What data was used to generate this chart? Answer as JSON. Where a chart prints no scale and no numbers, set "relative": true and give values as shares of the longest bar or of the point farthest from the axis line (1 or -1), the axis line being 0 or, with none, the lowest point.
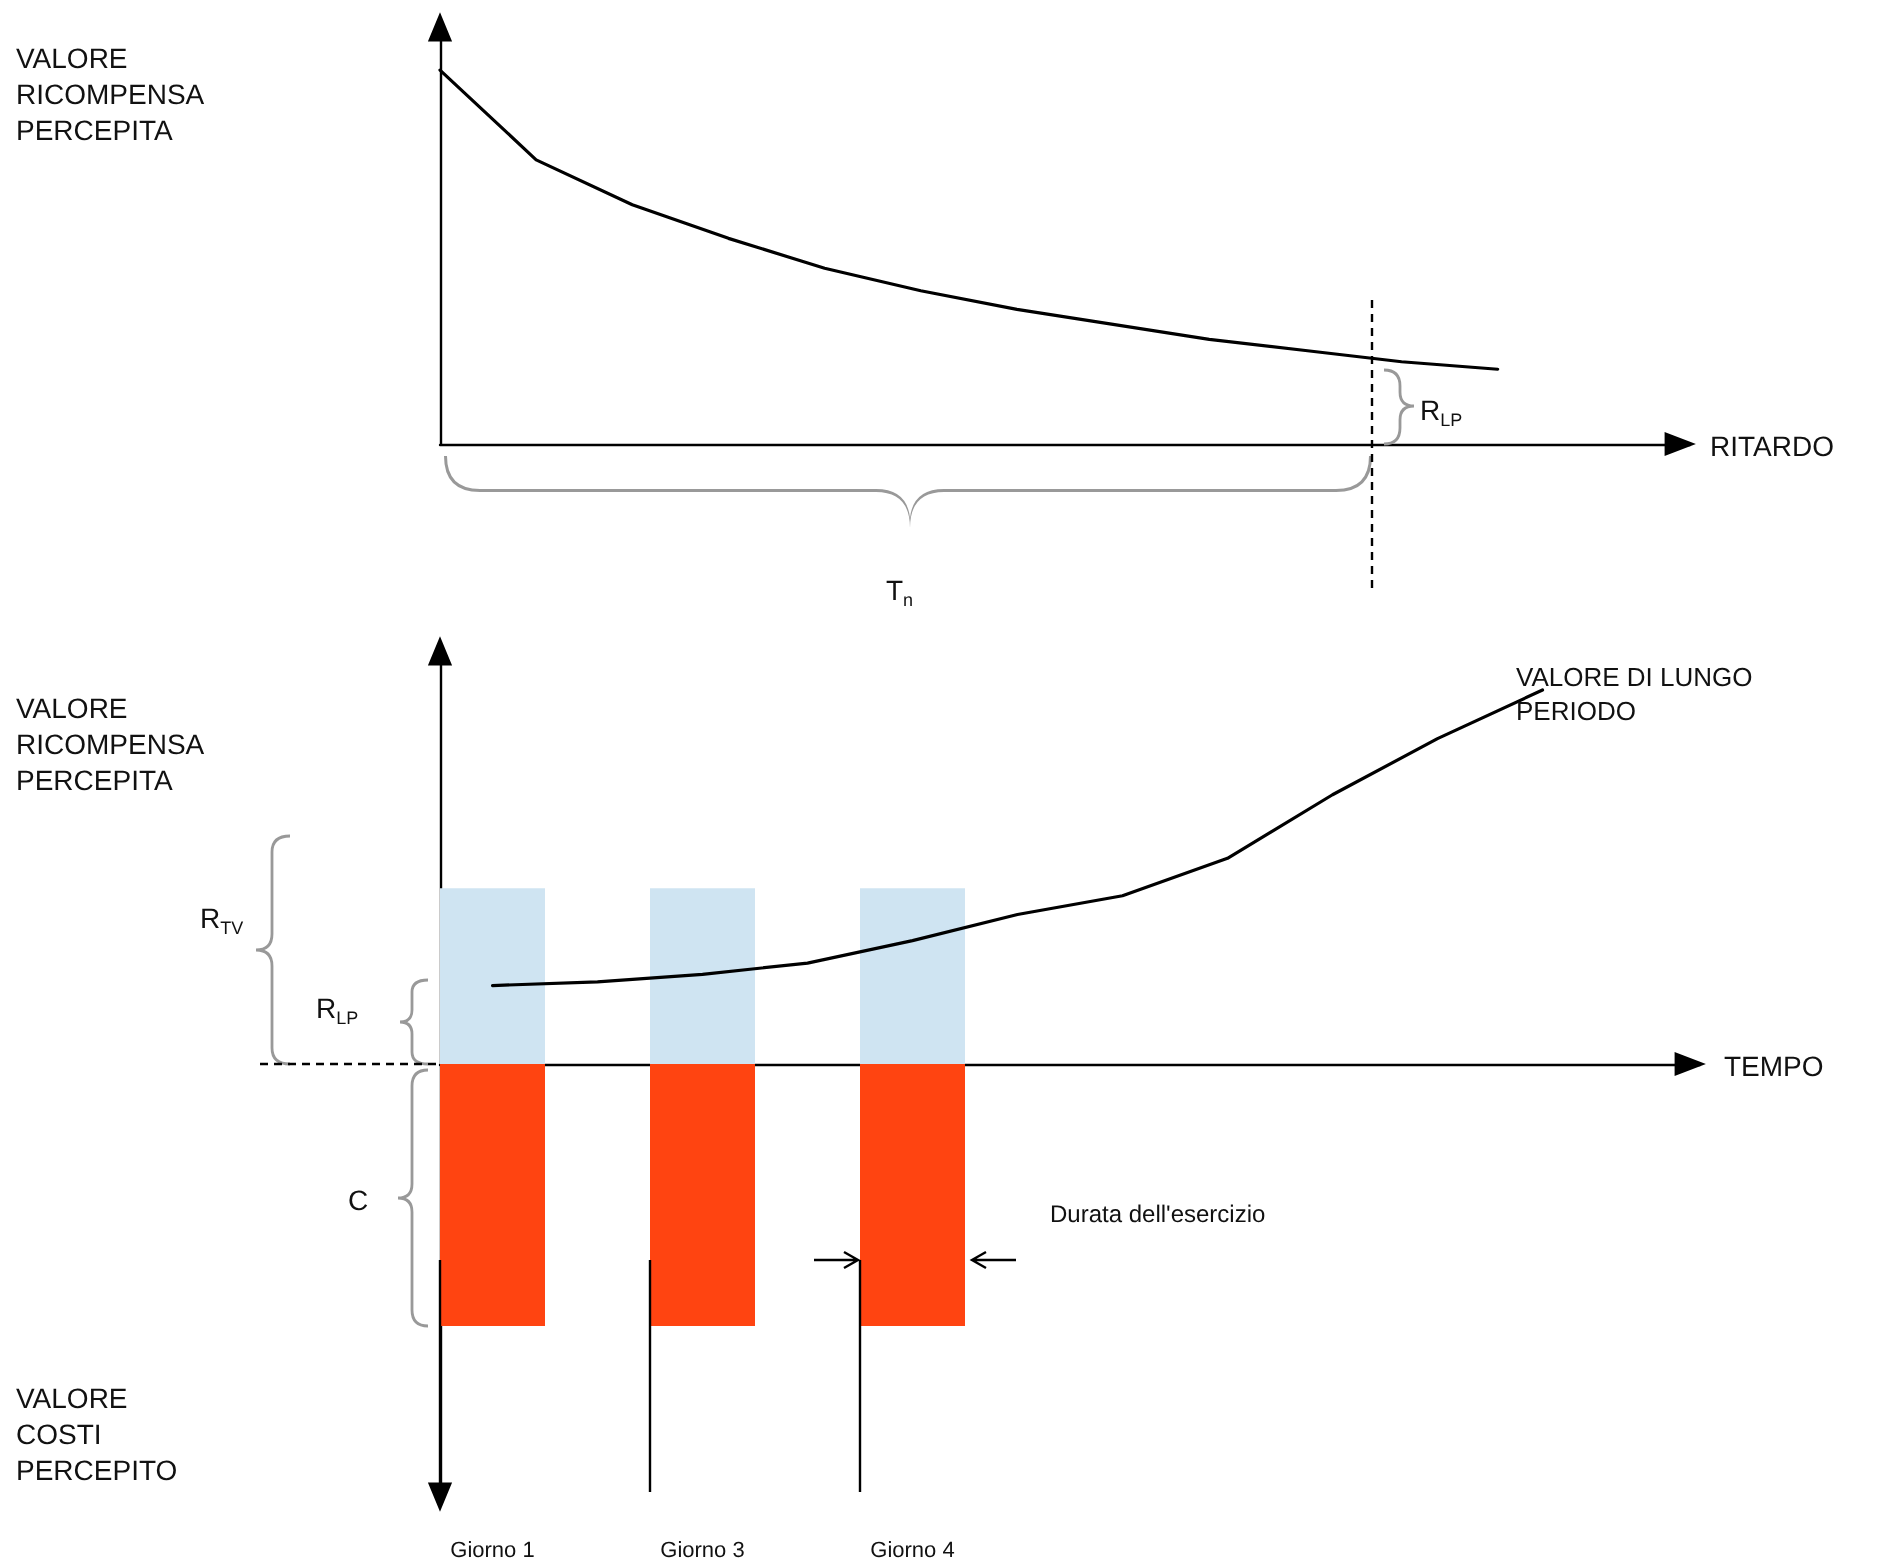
{
  "chart_data": [
    {
      "type": "line",
      "relative": true,
      "ylabel": "VALORE RICOMPENSA PERCEPITA",
      "xlabel": "RITARDO",
      "annotations": [
        "R$_{LP}$",
        "T$_{n}$"
      ],
      "categories": [
        null,
        null,
        null,
        null,
        null,
        null,
        null,
        null,
        null,
        null,
        null,
        null,
        null,
        null
      ],
      "series": [
        {
          "color": "#000000",
          "values": [
            1,
            0.76,
            0.64,
            0.55,
            0.47,
            0.41,
            0.36,
            0.32,
            0.28,
            0.25,
            0.22,
            0.2,
            null,
            null
          ]
        }
      ]
    },
    {
      "type": "bar",
      "relative": true,
      "stacked": true,
      "ylabel": "VALORE RICOMPENSA PERCEPITA",
      "xlabel": "TEMPO",
      "annotations": [
        "VALORE COSTI PERCEPITO",
        "R$_{TV}$",
        "R$_{LP}$",
        "C",
        "Durata dell'esercizio"
      ],
      "categories": [
        "Giorno 1",
        null,
        "Giorno 3",
        null,
        "Giorno 4",
        null,
        null,
        null,
        null,
        null,
        null,
        null
      ],
      "series": [
        {
          "color": "#cfe4f2",
          "values": [
            0.47,
            null,
            0.47,
            null,
            0.47,
            null,
            null,
            null,
            null,
            null,
            null,
            null
          ]
        },
        {
          "color": "#ff4411",
          "values": [
            -0.7,
            null,
            -0.7,
            null,
            -0.7,
            null,
            null,
            null,
            null,
            null,
            null,
            null
          ]
        },
        {
          "type": "line",
          "name": "VALORE DI LUNGO PERIODO",
          "color": "#000000",
          "values": [
            0.21,
            0.22,
            0.24,
            0.27,
            0.33,
            0.4,
            0.45,
            0.55,
            0.72,
            0.87,
            1,
            null
          ]
        }
      ]
    }
  ]
}
